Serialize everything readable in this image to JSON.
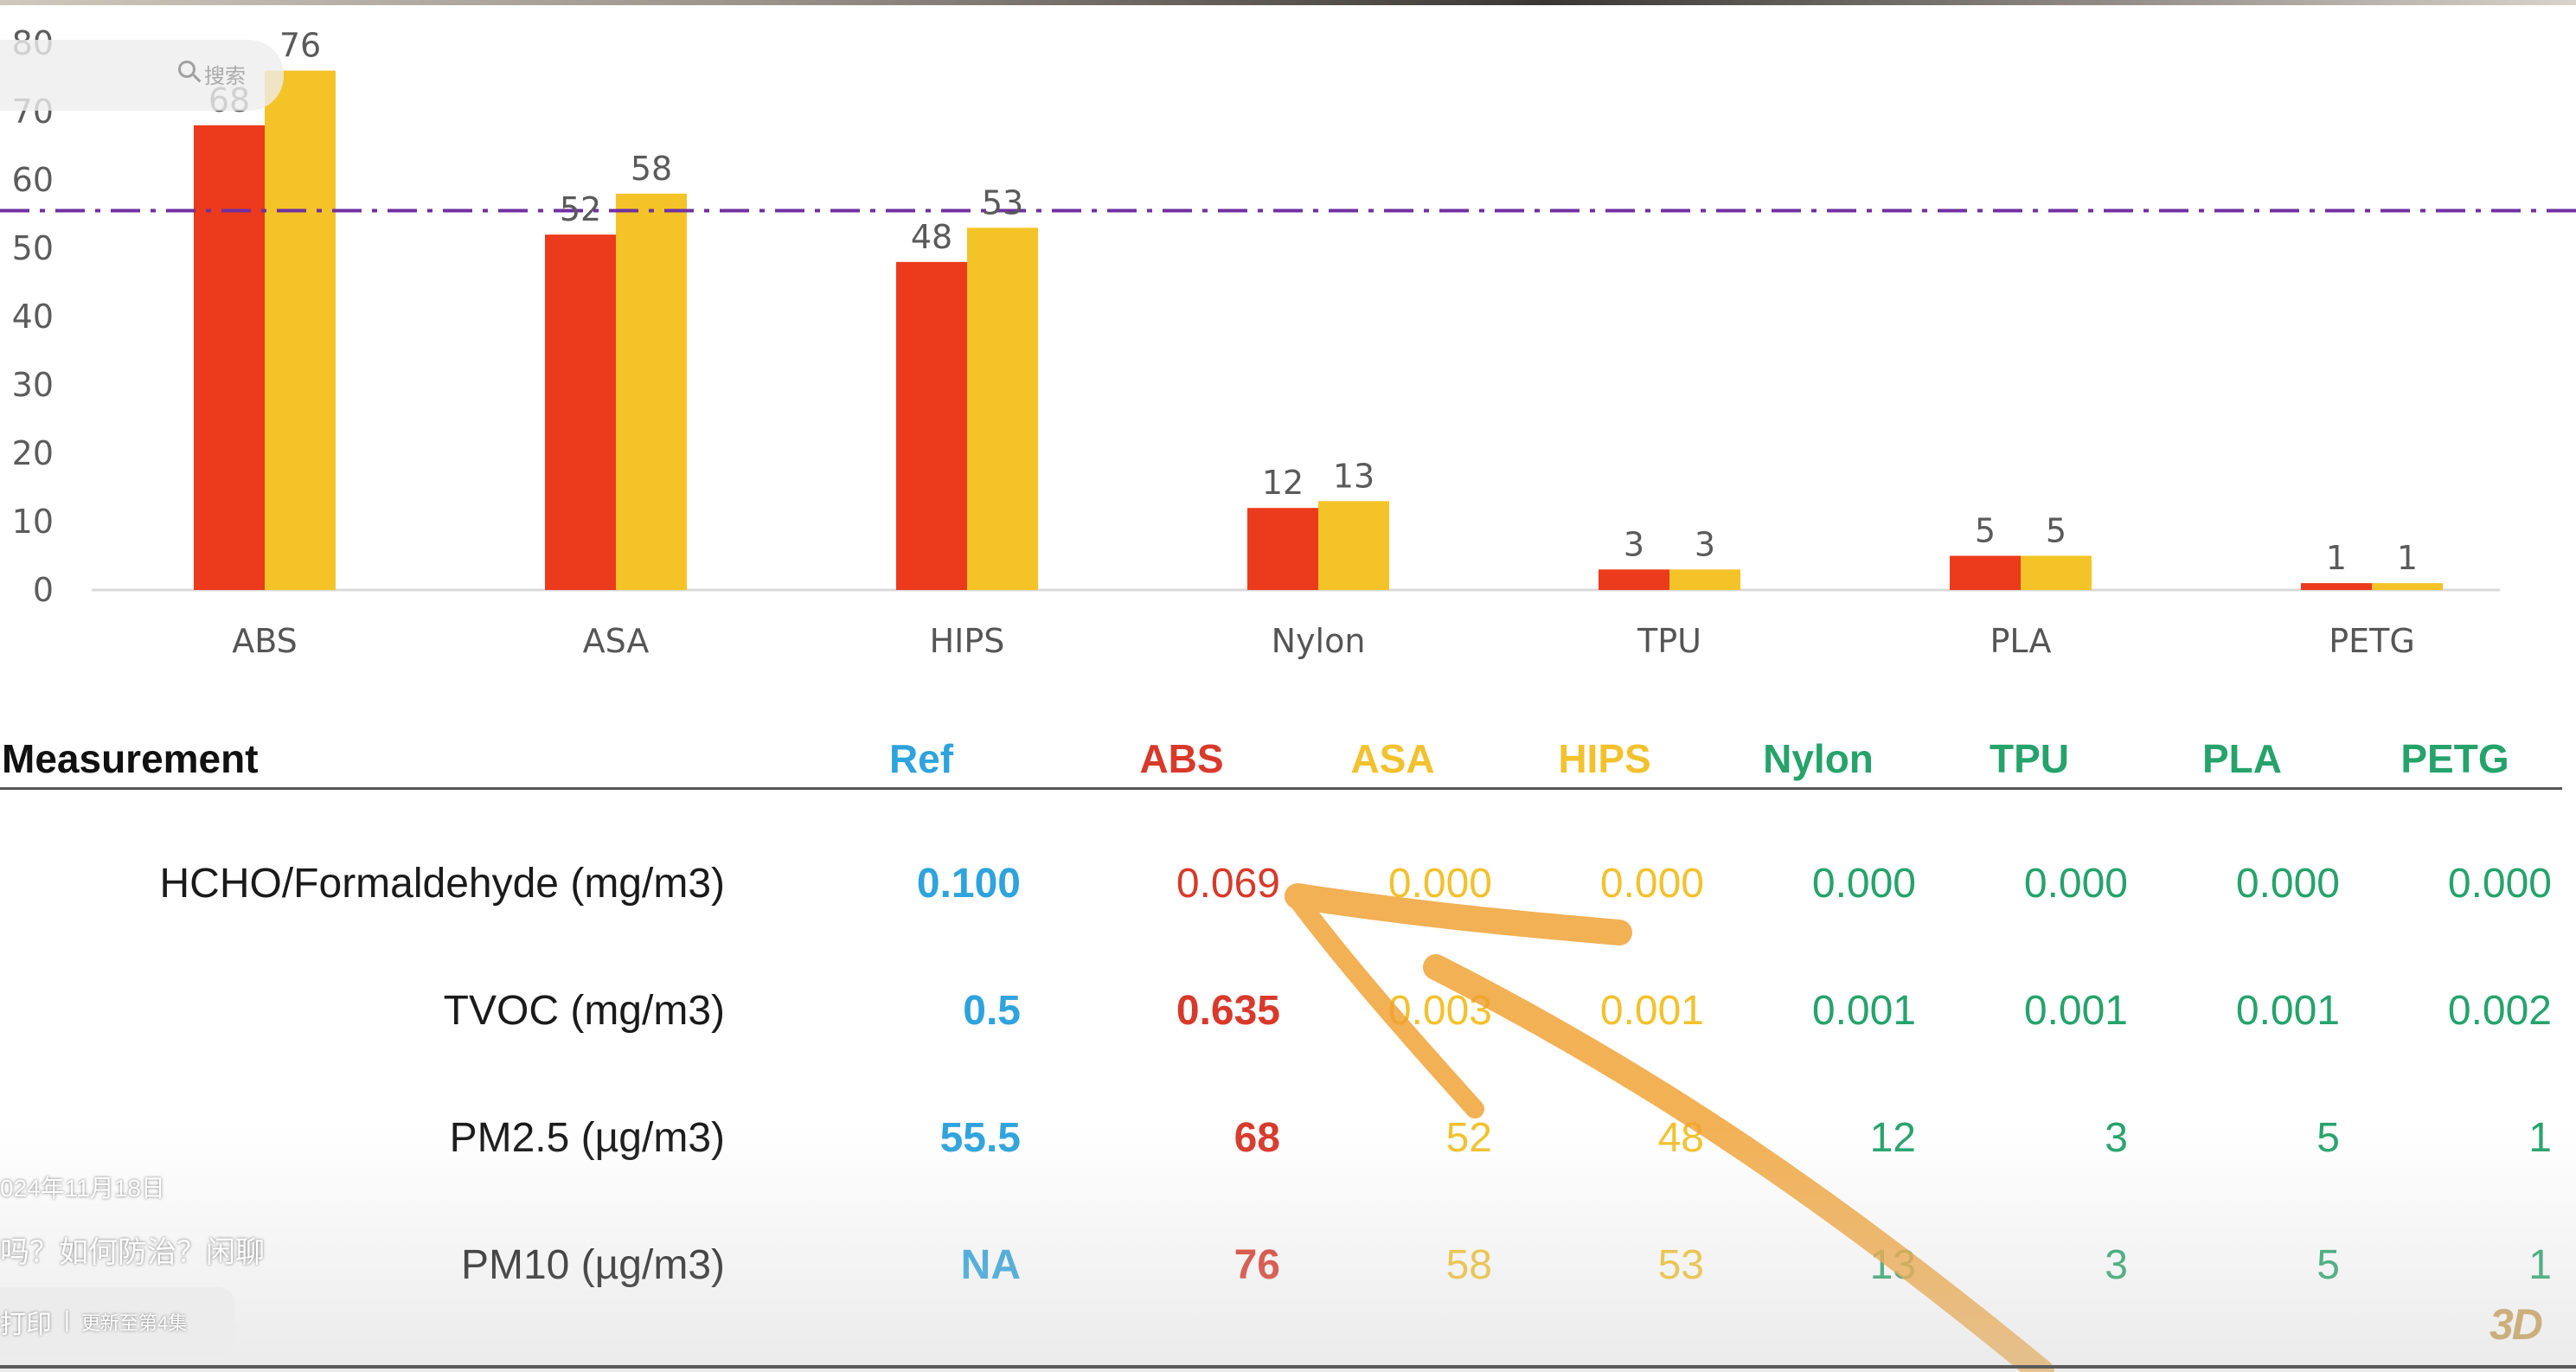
{
  "chart_data": {
    "type": "bar",
    "categories": [
      "ABS",
      "ASA",
      "HIPS",
      "Nylon",
      "TPU",
      "PLA",
      "PETG"
    ],
    "series": [
      {
        "name": "PM2.5",
        "color": "#ec3a1c",
        "values": [
          68,
          52,
          48,
          12,
          3,
          5,
          1
        ]
      },
      {
        "name": "PM10",
        "color": "#f4c327",
        "values": [
          76,
          58,
          53,
          13,
          3,
          5,
          1
        ]
      }
    ],
    "ylim": [
      0,
      80
    ],
    "yticks": [
      0,
      10,
      20,
      30,
      40,
      50,
      60,
      70,
      80
    ],
    "reference_line": {
      "value": 55.5,
      "color": "#7030a0",
      "style": "dash-dot"
    },
    "title": "",
    "xlabel": "",
    "ylabel": ""
  },
  "search": {
    "placeholder": "搜索"
  },
  "table": {
    "header_label": "Measurement",
    "columns": [
      {
        "name": "Ref",
        "color": "#2ea3dd"
      },
      {
        "name": "ABS",
        "color": "#d8392b"
      },
      {
        "name": "ASA",
        "color": "#f2c12e"
      },
      {
        "name": "HIPS",
        "color": "#f2c12e"
      },
      {
        "name": "Nylon",
        "color": "#25a36b"
      },
      {
        "name": "TPU",
        "color": "#25a36b"
      },
      {
        "name": "PLA",
        "color": "#25a36b"
      },
      {
        "name": "PETG",
        "color": "#25a36b"
      }
    ],
    "rows": [
      {
        "label": "HCHO/Formaldehyde (mg/m3)",
        "values": [
          "0.100",
          "0.069",
          "0.000",
          "0.000",
          "0.000",
          "0.000",
          "0.000",
          "0.000"
        ]
      },
      {
        "label": "TVOC (mg/m3)",
        "values": [
          "0.5",
          "0.635",
          "0.003",
          "0.001",
          "0.001",
          "0.001",
          "0.001",
          "0.002"
        ]
      },
      {
        "label": "PM2.5 (µg/m3)",
        "values": [
          "55.5",
          "68",
          "52",
          "48",
          "12",
          "3",
          "5",
          "1"
        ]
      },
      {
        "label": "PM10 (µg/m3)",
        "values": [
          "NA",
          "76",
          "58",
          "53",
          "13",
          "3",
          "5",
          "1"
        ]
      }
    ]
  },
  "annotation": {
    "arrow_color": "#f0a030"
  },
  "overlay": {
    "date": "024年11月18日",
    "caption": "吗？如何防治？闲聊",
    "tag_print": "打印",
    "tag_sep": "|",
    "tag_more": "更新至第4集",
    "watermark": "3D"
  }
}
